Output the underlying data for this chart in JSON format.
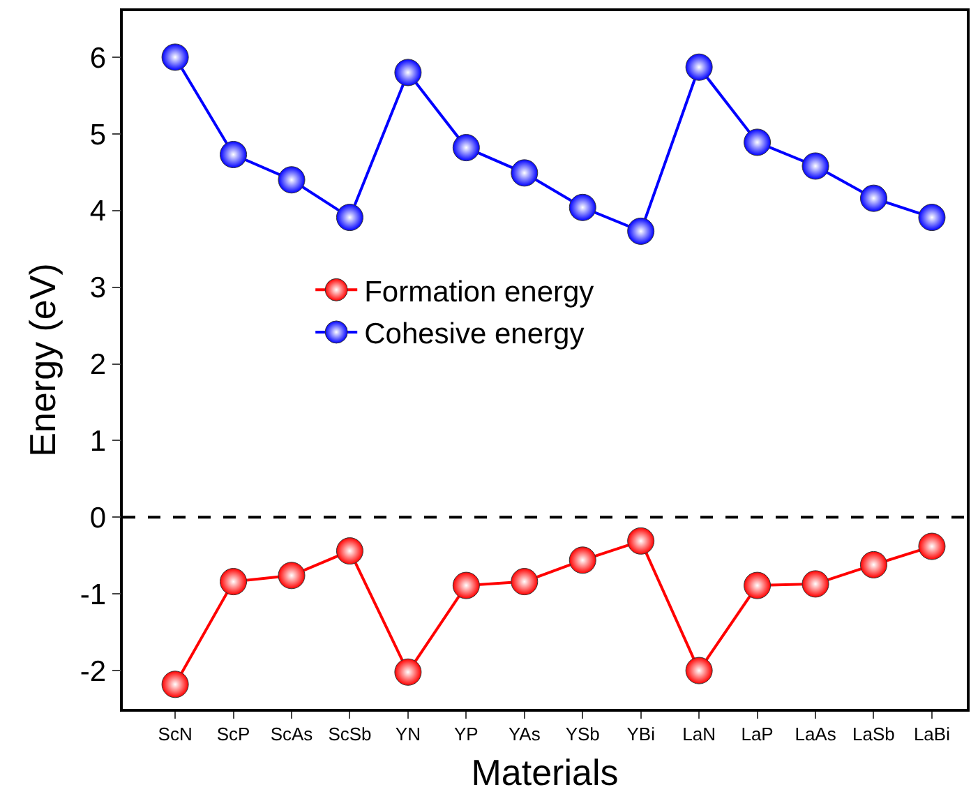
{
  "chart_data": {
    "type": "line",
    "xlabel": "Materials",
    "ylabel": "Energy (eV)",
    "categories": [
      "ScN",
      "ScP",
      "ScAs",
      "ScSb",
      "YN",
      "YP",
      "YAs",
      "YSb",
      "YBi",
      "LaN",
      "LaP",
      "LaAs",
      "LaSb",
      "LaBi"
    ],
    "series": [
      {
        "name": "Formation energy",
        "color": "#ff0000",
        "values": [
          -2.18,
          -0.84,
          -0.76,
          -0.44,
          -2.02,
          -0.89,
          -0.84,
          -0.56,
          -0.31,
          -2.0,
          -0.89,
          -0.87,
          -0.62,
          -0.38
        ]
      },
      {
        "name": "Cohesive energy",
        "color": "#0000ff",
        "values": [
          6.0,
          4.73,
          4.4,
          3.91,
          5.8,
          4.82,
          4.49,
          4.04,
          3.73,
          5.87,
          4.89,
          4.58,
          4.16,
          3.91
        ]
      }
    ],
    "ylim": [
      -2.5,
      6.6
    ],
    "yticks": [
      -2,
      -1,
      0,
      1,
      2,
      3,
      4,
      5,
      6
    ],
    "ref_lines": [
      {
        "axis": "y",
        "value": 0,
        "color": "#000000",
        "line_style": "dashed"
      }
    ],
    "grid": false,
    "legend": "center",
    "marker": "circle",
    "line_style": "solid"
  }
}
